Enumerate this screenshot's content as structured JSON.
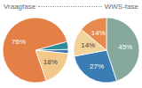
{
  "chart_data": [
    {
      "type": "pie",
      "title": "Vraagfase",
      "values": [
        4,
        2,
        18,
        76
      ],
      "colors": [
        "#2e8b9a",
        "#3b78b5",
        "#f3c98b",
        "#e47f45"
      ],
      "data_labels": true,
      "value_labels": [
        null,
        null,
        "18%",
        "76%"
      ]
    },
    {
      "type": "pie",
      "title": "WWS-fase",
      "values": [
        45,
        27,
        14,
        14
      ],
      "colors": [
        "#86a99b",
        "#3a7db4",
        "#f2d29b",
        "#e88a50"
      ],
      "data_labels": true,
      "value_labels": [
        "45%",
        "27%",
        "14%",
        "14%"
      ]
    }
  ]
}
